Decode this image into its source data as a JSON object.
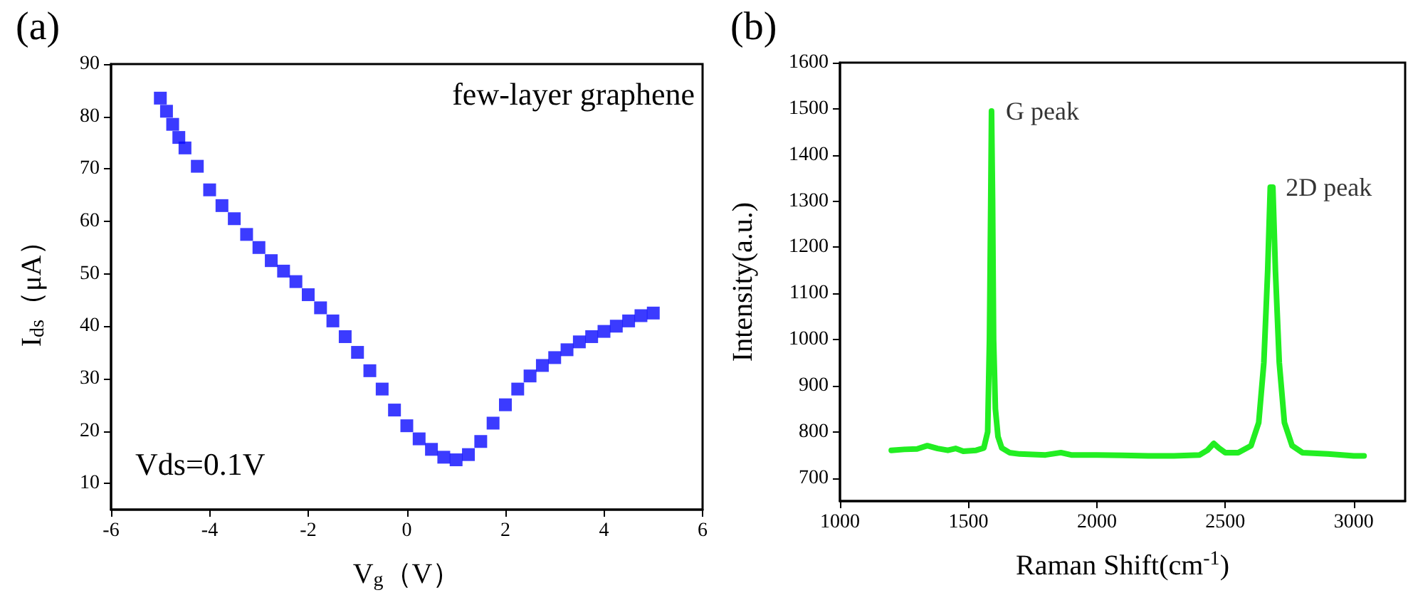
{
  "chart_data": [
    {
      "type": "scatter",
      "title": "(a)",
      "xlabel": "V$_{g}$（V）",
      "ylabel": "I$_{ds}$（μA）",
      "annotations": [
        "few-layer graphene",
        "Vds=0.1V"
      ],
      "x": [
        -5,
        -4.875,
        -4.75,
        -4.625,
        -4.5,
        -4.25,
        -4,
        -3.75,
        -3.5,
        -3.25,
        -3,
        -2.75,
        -2.5,
        -2.25,
        -2,
        -1.75,
        -1.5,
        -1.25,
        -1,
        -0.75,
        -0.5,
        -0.25,
        0,
        0.25,
        0.5,
        0.75,
        1,
        1.25,
        1.5,
        1.75,
        2,
        2.25,
        2.5,
        2.75,
        3,
        3.25,
        3.5,
        3.75,
        4,
        4.25,
        4.5,
        4.75,
        5
      ],
      "series": [
        {
          "color": "#0a0aff",
          "values": [
            83.5,
            81,
            78.5,
            76,
            74,
            70.5,
            66,
            63,
            60.5,
            57.5,
            55,
            52.5,
            50.5,
            48.5,
            46,
            43.5,
            41,
            38,
            35,
            31.5,
            28,
            24,
            21,
            18.5,
            16.5,
            15,
            14.5,
            15.5,
            18,
            21.5,
            25,
            28,
            30.5,
            32.5,
            34,
            35.5,
            37,
            38,
            39,
            40,
            41,
            42,
            42.5
          ]
        }
      ],
      "xlim": [
        -6,
        6
      ],
      "xticks": [
        -6,
        -4,
        -2,
        0,
        2,
        4,
        6
      ],
      "ylim": [
        5,
        90
      ],
      "yticks": [
        10,
        20,
        30,
        40,
        50,
        60,
        70,
        80,
        90
      ],
      "grid": false,
      "marker": "square"
    },
    {
      "type": "line",
      "title": "(b)",
      "xlabel": "Raman Shift(cm$^{-1}$)",
      "ylabel": "Intensity(a.u.)",
      "annotations": [
        {
          "text": "G peak",
          "x": 1590,
          "y": 1495
        },
        {
          "text": "2D peak",
          "x": 2680,
          "y": 1330
        }
      ],
      "x": [
        1200,
        1250,
        1300,
        1340,
        1380,
        1420,
        1450,
        1480,
        1530,
        1560,
        1575,
        1582,
        1587,
        1590,
        1594,
        1598,
        1605,
        1615,
        1630,
        1660,
        1700,
        1800,
        1860,
        1900,
        2000,
        2100,
        2200,
        2300,
        2400,
        2430,
        2455,
        2475,
        2500,
        2550,
        2600,
        2630,
        2650,
        2665,
        2675,
        2685,
        2695,
        2710,
        2730,
        2760,
        2800,
        2900,
        3000,
        3040
      ],
      "series": [
        {
          "color": "#22ee22",
          "values": [
            760,
            762,
            763,
            770,
            764,
            760,
            764,
            758,
            760,
            765,
            800,
            1000,
            1300,
            1495,
            1300,
            1000,
            850,
            790,
            765,
            755,
            752,
            750,
            755,
            750,
            750,
            749,
            748,
            748,
            750,
            760,
            775,
            765,
            755,
            755,
            770,
            820,
            950,
            1150,
            1330,
            1330,
            1150,
            950,
            820,
            770,
            755,
            752,
            748,
            748
          ]
        }
      ],
      "xlim": [
        1000,
        3200
      ],
      "xticks": [
        1000,
        1500,
        2000,
        2500,
        3000
      ],
      "ylim": [
        650,
        1600
      ],
      "yticks": [
        700,
        800,
        900,
        1000,
        1100,
        1200,
        1300,
        1400,
        1500,
        1600
      ],
      "grid": false,
      "marker": "none",
      "line_style": "solid"
    }
  ]
}
